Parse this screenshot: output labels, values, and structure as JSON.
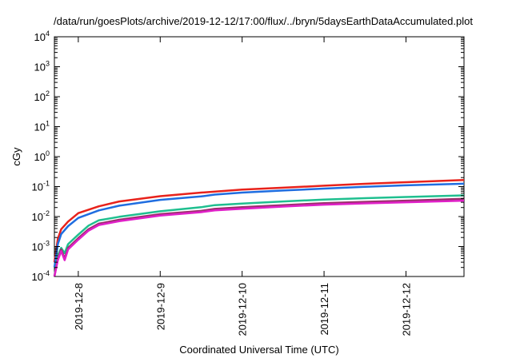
{
  "chart_data": {
    "type": "line",
    "title": "/data/run/goesPlots/archive/2019-12-12/17:00/flux/../bryn/5daysEarthDataAccumulated.plot",
    "xlabel": "Coordinated Universal Time (UTC)",
    "ylabel": "cGy",
    "y_scale": "log",
    "ylim": [
      0.0001,
      10000
    ],
    "y_ticks": [
      {
        "value": 0.0001,
        "base": "10",
        "exp": "-4"
      },
      {
        "value": 0.001,
        "base": "10",
        "exp": "-3"
      },
      {
        "value": 0.01,
        "base": "10",
        "exp": "-2"
      },
      {
        "value": 0.1,
        "base": "10",
        "exp": "-1"
      },
      {
        "value": 1,
        "base": "10",
        "exp": "0"
      },
      {
        "value": 10,
        "base": "10",
        "exp": "1"
      },
      {
        "value": 100,
        "base": "10",
        "exp": "2"
      },
      {
        "value": 1000,
        "base": "10",
        "exp": "3"
      },
      {
        "value": 10000,
        "base": "10",
        "exp": "4"
      }
    ],
    "xlim": [
      "2019-12-07T17:00",
      "2019-12-12T17:00"
    ],
    "x_ticks": [
      {
        "value": "2019-12-08T00:00",
        "label": "2019-12-8"
      },
      {
        "value": "2019-12-09T00:00",
        "label": "2019-12-9"
      },
      {
        "value": "2019-12-10T00:00",
        "label": "2019-12-10"
      },
      {
        "value": "2019-12-11T00:00",
        "label": "2019-12-11"
      },
      {
        "value": "2019-12-12T00:00",
        "label": "2019-12-12"
      }
    ],
    "grid": false,
    "series": [
      {
        "color": "#e8221b",
        "points": [
          [
            "2019-12-07T17:00",
            0.0003
          ],
          [
            "2019-12-07T18:00",
            0.0018
          ],
          [
            "2019-12-07T19:00",
            0.0038
          ],
          [
            "2019-12-07T21:00",
            0.0068
          ],
          [
            "2019-12-08T00:00",
            0.013
          ],
          [
            "2019-12-08T06:00",
            0.022
          ],
          [
            "2019-12-08T12:00",
            0.032
          ],
          [
            "2019-12-09T00:00",
            0.048
          ],
          [
            "2019-12-09T12:00",
            0.063
          ],
          [
            "2019-12-10T00:00",
            0.079
          ],
          [
            "2019-12-10T12:00",
            0.092
          ],
          [
            "2019-12-11T00:00",
            0.107
          ],
          [
            "2019-12-11T12:00",
            0.124
          ],
          [
            "2019-12-12T00:00",
            0.14
          ],
          [
            "2019-12-12T17:00",
            0.165
          ]
        ]
      },
      {
        "color": "#1f6de0",
        "points": [
          [
            "2019-12-07T17:00",
            0.0002
          ],
          [
            "2019-12-07T18:00",
            0.0012
          ],
          [
            "2019-12-07T19:00",
            0.0026
          ],
          [
            "2019-12-07T21:00",
            0.0048
          ],
          [
            "2019-12-08T00:00",
            0.009
          ],
          [
            "2019-12-08T06:00",
            0.016
          ],
          [
            "2019-12-08T12:00",
            0.023
          ],
          [
            "2019-12-09T00:00",
            0.036
          ],
          [
            "2019-12-09T12:00",
            0.047
          ],
          [
            "2019-12-09T16:00",
            0.054
          ],
          [
            "2019-12-10T00:00",
            0.063
          ],
          [
            "2019-12-10T12:00",
            0.074
          ],
          [
            "2019-12-11T00:00",
            0.086
          ],
          [
            "2019-12-11T12:00",
            0.099
          ],
          [
            "2019-12-12T00:00",
            0.11
          ],
          [
            "2019-12-12T17:00",
            0.125
          ]
        ]
      },
      {
        "color": "#1fbf8f",
        "points": [
          [
            "2019-12-07T17:00",
            0.0001
          ],
          [
            "2019-12-07T18:00",
            0.0005
          ],
          [
            "2019-12-07T19:00",
            0.0009
          ],
          [
            "2019-12-07T20:00",
            0.0006
          ],
          [
            "2019-12-07T21:00",
            0.0012
          ],
          [
            "2019-12-08T00:00",
            0.0025
          ],
          [
            "2019-12-08T03:00",
            0.005
          ],
          [
            "2019-12-08T06:00",
            0.0075
          ],
          [
            "2019-12-08T12:00",
            0.0098
          ],
          [
            "2019-12-09T00:00",
            0.015
          ],
          [
            "2019-12-09T12:00",
            0.0205
          ],
          [
            "2019-12-09T16:00",
            0.024
          ],
          [
            "2019-12-10T00:00",
            0.027
          ],
          [
            "2019-12-10T12:00",
            0.032
          ],
          [
            "2019-12-11T00:00",
            0.037
          ],
          [
            "2019-12-11T12:00",
            0.041
          ],
          [
            "2019-12-12T00:00",
            0.045
          ],
          [
            "2019-12-12T17:00",
            0.051
          ]
        ]
      },
      {
        "color": "#9a2f6a",
        "points": [
          [
            "2019-12-07T17:00",
            0.0001
          ],
          [
            "2019-12-07T18:00",
            0.0004
          ],
          [
            "2019-12-07T19:00",
            0.0008
          ],
          [
            "2019-12-07T20:00",
            0.0004
          ],
          [
            "2019-12-07T21:00",
            0.0009
          ],
          [
            "2019-12-08T00:00",
            0.0019
          ],
          [
            "2019-12-08T03:00",
            0.0038
          ],
          [
            "2019-12-08T06:00",
            0.0058
          ],
          [
            "2019-12-08T12:00",
            0.0078
          ],
          [
            "2019-12-09T00:00",
            0.012
          ],
          [
            "2019-12-09T12:00",
            0.0155
          ],
          [
            "2019-12-09T16:00",
            0.018
          ],
          [
            "2019-12-10T00:00",
            0.0205
          ],
          [
            "2019-12-10T12:00",
            0.024
          ],
          [
            "2019-12-11T00:00",
            0.028
          ],
          [
            "2019-12-11T12:00",
            0.031
          ],
          [
            "2019-12-12T00:00",
            0.034
          ],
          [
            "2019-12-12T17:00",
            0.039
          ]
        ]
      },
      {
        "color": "#e020c8",
        "points": [
          [
            "2019-12-07T17:00",
            0.0001
          ],
          [
            "2019-12-07T18:00",
            0.00035
          ],
          [
            "2019-12-07T19:00",
            0.0007
          ],
          [
            "2019-12-07T20:00",
            0.00035
          ],
          [
            "2019-12-07T21:00",
            0.0008
          ],
          [
            "2019-12-08T00:00",
            0.0017
          ],
          [
            "2019-12-08T03:00",
            0.0034
          ],
          [
            "2019-12-08T06:00",
            0.0052
          ],
          [
            "2019-12-08T12:00",
            0.007
          ],
          [
            "2019-12-09T00:00",
            0.0108
          ],
          [
            "2019-12-09T12:00",
            0.014
          ],
          [
            "2019-12-09T16:00",
            0.016
          ],
          [
            "2019-12-10T00:00",
            0.0182
          ],
          [
            "2019-12-10T12:00",
            0.0215
          ],
          [
            "2019-12-11T00:00",
            0.025
          ],
          [
            "2019-12-11T12:00",
            0.0275
          ],
          [
            "2019-12-12T00:00",
            0.03
          ],
          [
            "2019-12-12T17:00",
            0.034
          ]
        ]
      }
    ]
  }
}
